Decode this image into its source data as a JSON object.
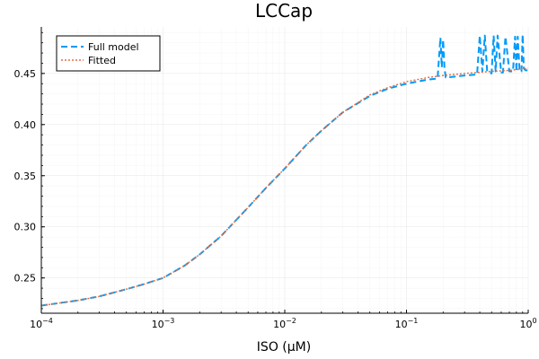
{
  "chart_data": {
    "type": "line",
    "title": "LCCap",
    "xlabel": "ISO (μM)",
    "ylabel": "",
    "x_scale": "log10",
    "xlim": [
      0.0001,
      1.0
    ],
    "ylim": [
      0.2155,
      0.4955
    ],
    "x_ticks": [
      {
        "value": 0.0001,
        "base": "10",
        "exp": "−4"
      },
      {
        "value": 0.001,
        "base": "10",
        "exp": "−3"
      },
      {
        "value": 0.01,
        "base": "10",
        "exp": "−2"
      },
      {
        "value": 0.1,
        "base": "10",
        "exp": "−1"
      },
      {
        "value": 1.0,
        "base": "10",
        "exp": "0"
      }
    ],
    "y_ticks": [
      {
        "value": 0.25,
        "label": "0.25"
      },
      {
        "value": 0.3,
        "label": "0.30"
      },
      {
        "value": 0.35,
        "label": "0.35"
      },
      {
        "value": 0.4,
        "label": "0.40"
      },
      {
        "value": 0.45,
        "label": "0.45"
      }
    ],
    "grid": true,
    "legend_position": "top-left",
    "series": [
      {
        "name": "Full model",
        "color": "#009AFA",
        "style": "dashed",
        "x": [
          0.0001,
          0.0002,
          0.0003,
          0.0005,
          0.0007,
          0.001,
          0.0015,
          0.002,
          0.003,
          0.005,
          0.007,
          0.01,
          0.015,
          0.02,
          0.03,
          0.05,
          0.07,
          0.1,
          0.15,
          0.18,
          0.19,
          0.195,
          0.2,
          0.205,
          0.21,
          0.3,
          0.38,
          0.4,
          0.42,
          0.44,
          0.46,
          0.5,
          0.52,
          0.54,
          0.56,
          0.6,
          0.62,
          0.65,
          0.7,
          0.75,
          0.78,
          0.8,
          0.82,
          0.85,
          0.88,
          0.9,
          0.92,
          0.95,
          1.0
        ],
        "y": [
          0.223,
          0.228,
          0.232,
          0.239,
          0.244,
          0.25,
          0.262,
          0.273,
          0.291,
          0.319,
          0.338,
          0.357,
          0.38,
          0.394,
          0.412,
          0.428,
          0.435,
          0.44,
          0.444,
          0.445,
          0.485,
          0.456,
          0.483,
          0.456,
          0.446,
          0.448,
          0.449,
          0.487,
          0.452,
          0.487,
          0.452,
          0.45,
          0.487,
          0.452,
          0.487,
          0.451,
          0.451,
          0.486,
          0.452,
          0.452,
          0.486,
          0.452,
          0.486,
          0.452,
          0.452,
          0.488,
          0.455,
          0.453,
          0.453
        ]
      },
      {
        "name": "Fitted",
        "color": "#E26F46",
        "style": "dotted",
        "x": [
          0.0001,
          0.0002,
          0.0003,
          0.0005,
          0.0007,
          0.001,
          0.0015,
          0.002,
          0.003,
          0.005,
          0.007,
          0.01,
          0.015,
          0.02,
          0.03,
          0.05,
          0.07,
          0.1,
          0.15,
          0.2,
          0.3,
          0.5,
          0.7,
          1.0
        ],
        "y": [
          0.223,
          0.228,
          0.232,
          0.239,
          0.244,
          0.25,
          0.262,
          0.273,
          0.291,
          0.319,
          0.338,
          0.357,
          0.38,
          0.394,
          0.412,
          0.429,
          0.436,
          0.442,
          0.446,
          0.448,
          0.45,
          0.452,
          0.453,
          0.455
        ]
      }
    ]
  }
}
